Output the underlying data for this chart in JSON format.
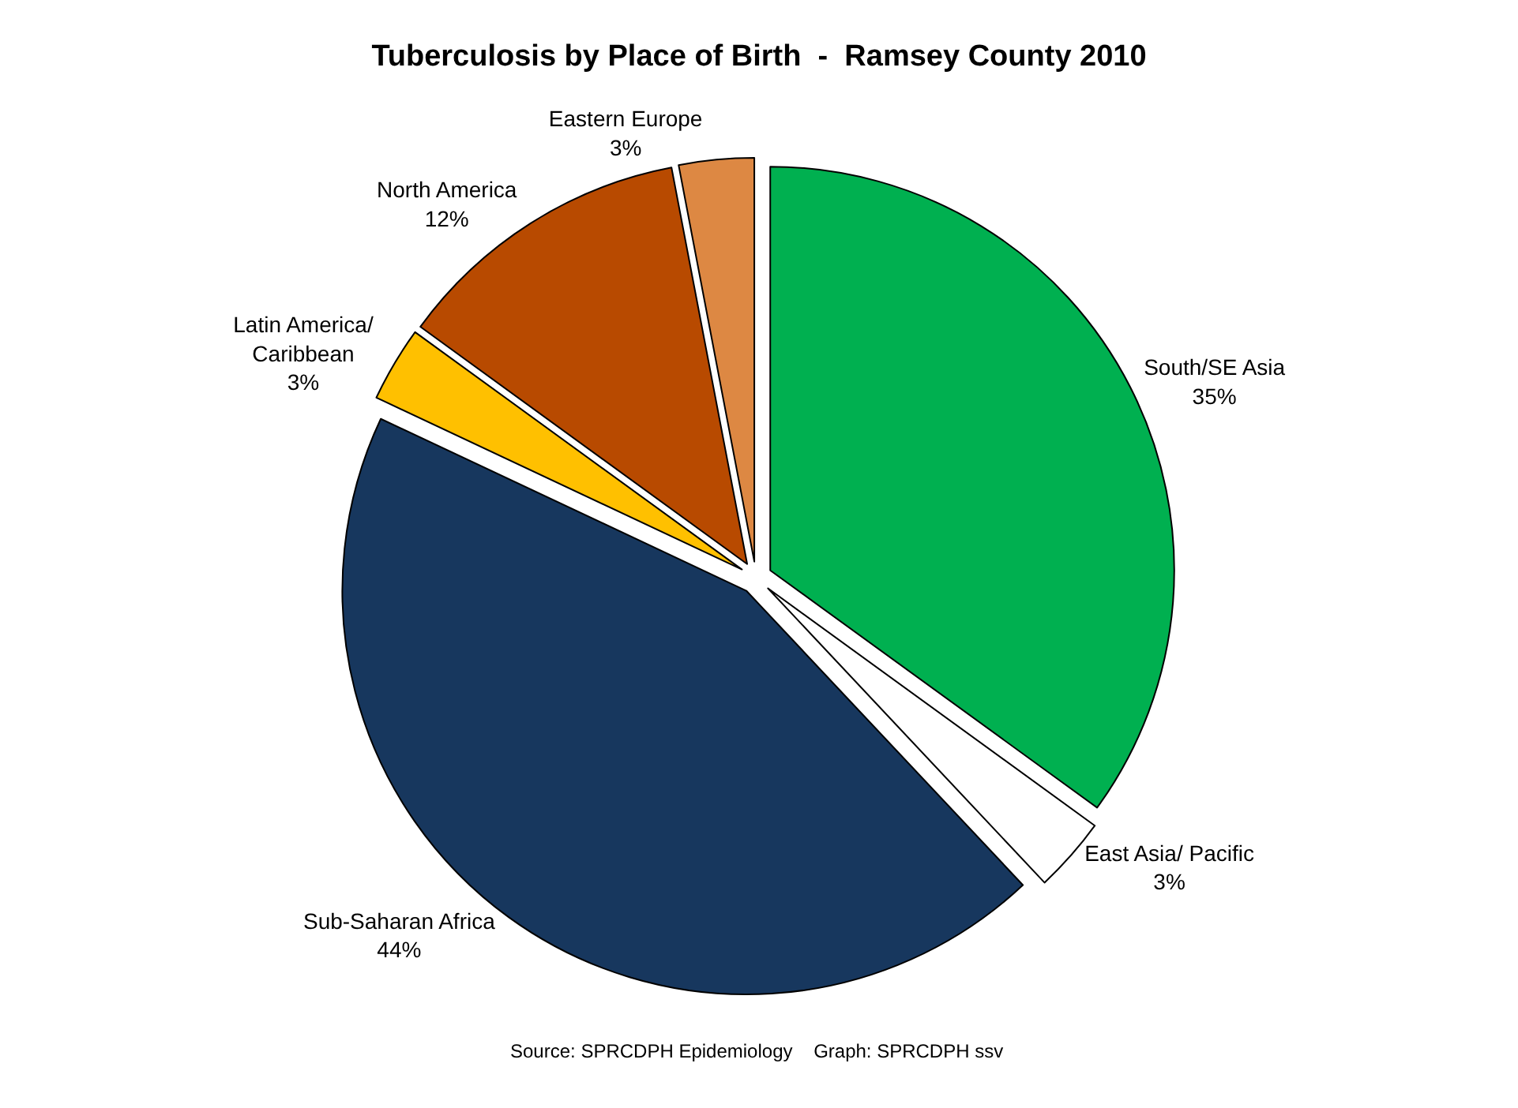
{
  "chart_data": {
    "type": "pie",
    "title": "Tuberculosis by Place of Birth  -  Ramsey County 2010",
    "categories": [
      "South/SE Asia",
      "East Asia/ Pacific",
      "Sub-Saharan Africa",
      "Latin America/ Caribbean",
      "North America",
      "Eastern Europe"
    ],
    "values": [
      35,
      3,
      44,
      3,
      12,
      3
    ],
    "value_labels": [
      "35%",
      "3%",
      "44%",
      "3%",
      "12%",
      "3%"
    ],
    "colors": [
      "#00b050",
      "#ffffff",
      "#17375e",
      "#ffc000",
      "#b84a00",
      "#dd8843"
    ],
    "annotations": [
      "Source: SPRCDPH Epidemiology    Graph: SPRCDPH ssv"
    ],
    "legend": false
  }
}
